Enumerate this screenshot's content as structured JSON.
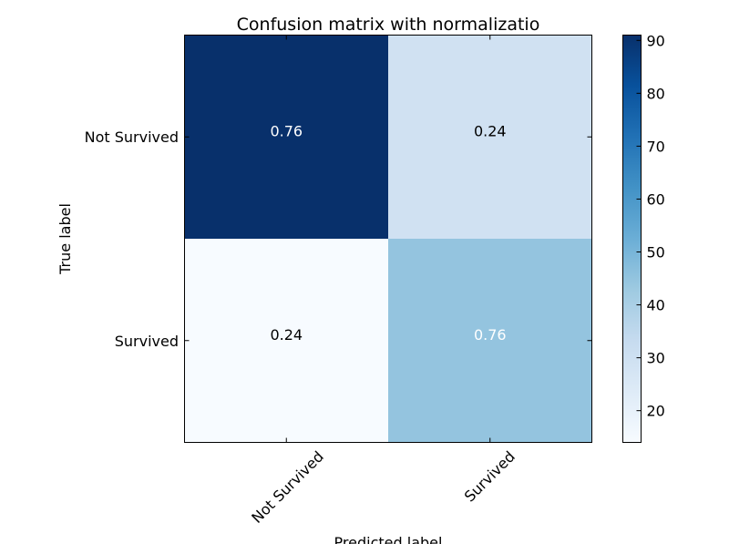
{
  "chart_data": {
    "type": "heatmap",
    "title": "Confusion matrix with normalizatio",
    "xlabel": "Predicted label",
    "ylabel": "True label",
    "x_categories": [
      "Not Survived",
      "Survived"
    ],
    "y_categories": [
      "Not Survived",
      "Survived"
    ],
    "cell_labels": [
      [
        "0.76",
        "0.24"
      ],
      [
        "0.24",
        "0.76"
      ]
    ],
    "cell_colors": [
      [
        "#08306b",
        "#d0e1f2"
      ],
      [
        "#f7fbff",
        "#94c4df"
      ]
    ],
    "cell_label_colors": [
      [
        "#ffffff",
        "#000000"
      ],
      [
        "#000000",
        "#ffffff"
      ]
    ],
    "colorbar": {
      "min": 14,
      "max": 91,
      "ticks": [
        20,
        30,
        40,
        50,
        60,
        70,
        80,
        90
      ],
      "colormap": "Blues"
    }
  }
}
